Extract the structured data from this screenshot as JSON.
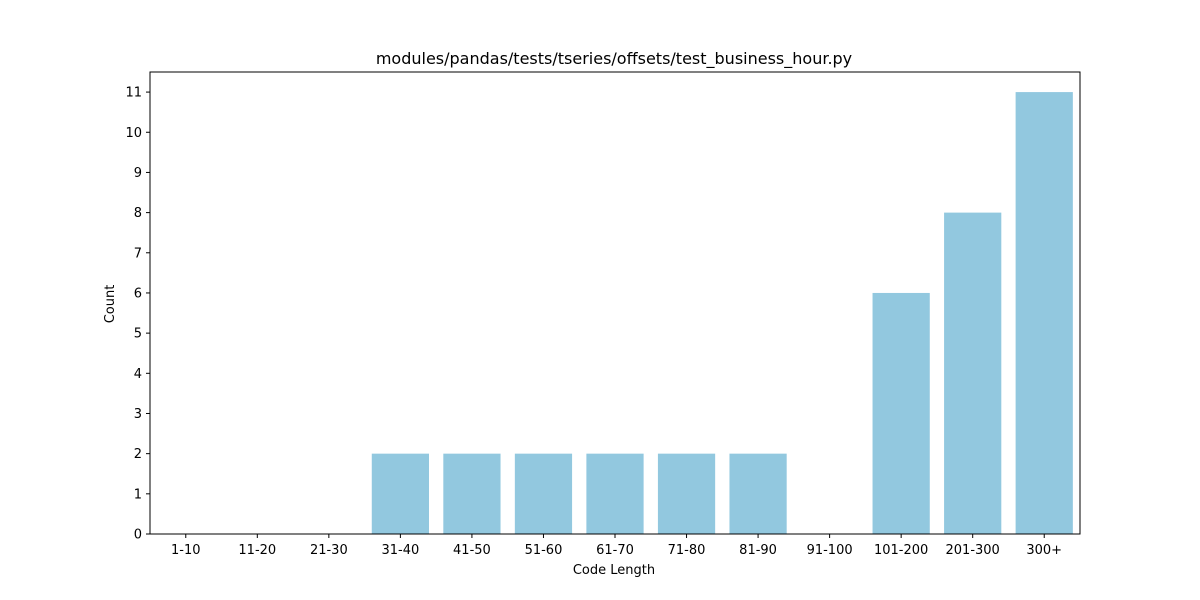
{
  "chart_data": {
    "type": "bar",
    "title": "modules/pandas/tests/tseries/offsets/test_business_hour.py",
    "xlabel": "Code Length",
    "ylabel": "Count",
    "categories": [
      "1-10",
      "11-20",
      "21-30",
      "31-40",
      "41-50",
      "51-60",
      "61-70",
      "71-80",
      "81-90",
      "91-100",
      "101-200",
      "201-300",
      "300+"
    ],
    "values": [
      0,
      0,
      0,
      2,
      2,
      2,
      2,
      2,
      2,
      0,
      6,
      8,
      11
    ],
    "ylim": [
      0,
      11.5
    ],
    "yticks": [
      0,
      1,
      2,
      3,
      4,
      5,
      6,
      7,
      8,
      9,
      10,
      11
    ],
    "bar_color": "#92c8df",
    "grid": false,
    "legend": "none"
  }
}
